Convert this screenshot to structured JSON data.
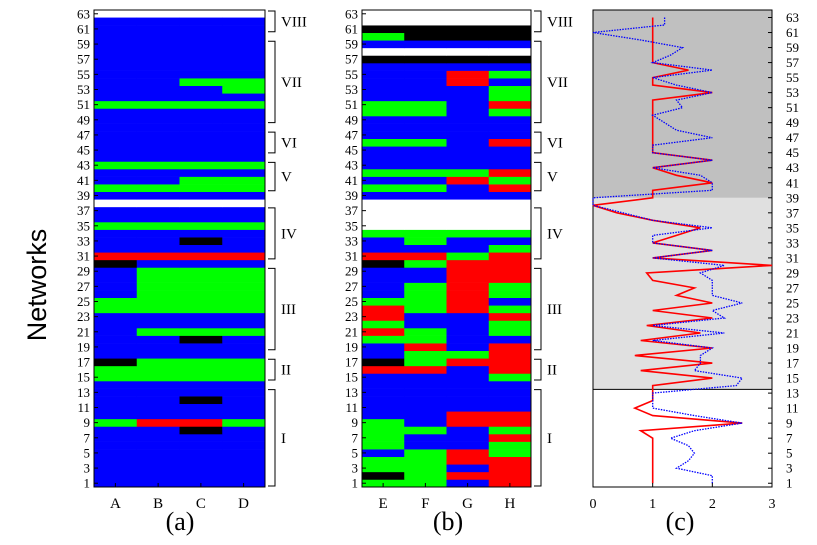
{
  "chart_data": [
    {
      "type": "heatmap",
      "panel_label": "(a)",
      "ylabel": "Networks",
      "columns": [
        "A",
        "B",
        "C",
        "D"
      ],
      "legend": {
        "blue": "#0000ff",
        "green": "#00ff00",
        "red": "#ff0000",
        "black": "#000000"
      },
      "rows_labeled": [
        1,
        3,
        5,
        7,
        9,
        11,
        13,
        15,
        17,
        19,
        21,
        23,
        25,
        27,
        29,
        31,
        33,
        35,
        37,
        39,
        41,
        43,
        45,
        47,
        49,
        51,
        53,
        55,
        57,
        59,
        61,
        63
      ],
      "grid": [
        "BBBB",
        "BBBB",
        "BBBB",
        "BBBB",
        "BBBB",
        "BBBB",
        "BBBB",
        "BBKB",
        "GRRG",
        "BBBB",
        "BBBB",
        "BBKB",
        "BBBB",
        "BBBB",
        "GGGG",
        "GGGG",
        "KGGG",
        "BBBB",
        "BBBB",
        "BBKB",
        "BGGG",
        "BBBB",
        "BBBB",
        "GGGG",
        "GGGG",
        "BGGG",
        "BGGG",
        "BGGG",
        "BGGG",
        "KBBB",
        "RRRR",
        "BBBB",
        "BBKB",
        "BBBB",
        "GGGG",
        "BBBB",
        "BBBB",
        "WWWW",
        "BBBB",
        "GGGG",
        "BBGG",
        "BBBB",
        "GGGG",
        "BBBB",
        "BBBB",
        "BBBB",
        "BBBB",
        "BBBB",
        "BBBB",
        "BBBB",
        "GGGG",
        "BBBB",
        "BBBG",
        "BBGG",
        "BBBB",
        "BBBB",
        "BBBB",
        "BBBB",
        "BBBB",
        "BBBB",
        "BBBB",
        "BBBB"
      ],
      "groups": [
        {
          "label": "I",
          "rows": [
            1,
            13
          ]
        },
        {
          "label": "II",
          "rows": [
            15,
            17
          ]
        },
        {
          "label": "III",
          "rows": [
            19,
            29
          ]
        },
        {
          "label": "IV",
          "rows": [
            31,
            37
          ]
        },
        {
          "label": "V",
          "rows": [
            40,
            43
          ]
        },
        {
          "label": "VI",
          "rows": [
            45,
            47
          ]
        },
        {
          "label": "VII",
          "rows": [
            49,
            59
          ]
        },
        {
          "label": "VIII",
          "rows": [
            61,
            63
          ]
        }
      ]
    },
    {
      "type": "heatmap",
      "panel_label": "(b)",
      "columns": [
        "E",
        "F",
        "G",
        "H"
      ],
      "rows_labeled": [
        1,
        3,
        5,
        7,
        9,
        11,
        13,
        15,
        17,
        19,
        21,
        23,
        25,
        27,
        29,
        31,
        33,
        35,
        37,
        39,
        41,
        43,
        45,
        47,
        49,
        51,
        53,
        55,
        57,
        59,
        61,
        63
      ],
      "grid": [
        "GGBR",
        "KGRR",
        "GGBR",
        "GGRR",
        "BGRG",
        "GBBG",
        "GBBR",
        "GGBG",
        "GBRR",
        "BBRR",
        "BBBB",
        "BBBB",
        "BBBB",
        "BBBB",
        "BBBG",
        "RRBR",
        "KGRR",
        "BGGR",
        "BRBR",
        "GGBB",
        "RGBG",
        "GBBG",
        "RBBR",
        "RGRG",
        "GGRB",
        "BGRG",
        "BGRG",
        "BBRR",
        "BBRR",
        "KGRR",
        "RRGR",
        "BBBG",
        "BGBB",
        "GGGG",
        "WWWW",
        "WWWW",
        "WWWW",
        "WWWW",
        "BBBB",
        "GGBR",
        "BBRG",
        "GGGR",
        "BBBB",
        "BBBB",
        "BBBB",
        "GGBR",
        "BBBB",
        "BBBB",
        "BBBB",
        "GGBG",
        "GGBR",
        "BBBG",
        "BBBG",
        "BBRB",
        "BBRG",
        "BBBB",
        "KKKK",
        "WWWW",
        "BBBB",
        "GKKK",
        "KKKK",
        "WWWW"
      ],
      "groups": [
        {
          "label": "I",
          "rows": [
            1,
            13
          ]
        },
        {
          "label": "II",
          "rows": [
            15,
            17
          ]
        },
        {
          "label": "III",
          "rows": [
            19,
            29
          ]
        },
        {
          "label": "IV",
          "rows": [
            31,
            37
          ]
        },
        {
          "label": "V",
          "rows": [
            40,
            43
          ]
        },
        {
          "label": "VI",
          "rows": [
            45,
            47
          ]
        },
        {
          "label": "VII",
          "rows": [
            49,
            59
          ]
        },
        {
          "label": "VIII",
          "rows": [
            61,
            63
          ]
        }
      ]
    },
    {
      "type": "line",
      "panel_label": "(c)",
      "xlim": [
        0,
        3
      ],
      "xticks": [
        0,
        1,
        2,
        3
      ],
      "ylim": [
        0.5,
        64
      ],
      "yticks": [
        1,
        3,
        5,
        7,
        9,
        11,
        13,
        15,
        17,
        19,
        21,
        23,
        25,
        27,
        29,
        31,
        33,
        35,
        37,
        39,
        41,
        43,
        45,
        47,
        49,
        51,
        53,
        55,
        57,
        59,
        61,
        63
      ],
      "shaded_bands": [
        {
          "rows": [
            13.5,
            39
          ],
          "color": "#e0e0e0"
        },
        {
          "rows": [
            39,
            64
          ],
          "color": "#c0c0c0"
        }
      ],
      "series": [
        {
          "color": "#ff0000",
          "style": "solid",
          "points": [
            [
              1,
              1
            ],
            [
              1,
              2
            ],
            [
              1,
              3
            ],
            [
              1,
              4
            ],
            [
              1,
              5
            ],
            [
              1,
              6
            ],
            [
              1,
              7
            ],
            [
              0.8,
              8
            ],
            [
              2.5,
              9
            ],
            [
              1,
              10
            ],
            [
              0.7,
              11
            ],
            [
              1,
              12
            ],
            [
              1,
              13
            ],
            [
              1,
              14
            ],
            [
              2,
              15
            ],
            [
              0.8,
              16
            ],
            [
              2,
              17
            ],
            [
              0.7,
              18
            ],
            [
              2,
              19
            ],
            [
              0.8,
              20
            ],
            [
              1.8,
              21
            ],
            [
              0.9,
              22
            ],
            [
              2,
              23
            ],
            [
              1,
              24
            ],
            [
              2,
              25
            ],
            [
              1.4,
              26
            ],
            [
              1.7,
              27
            ],
            [
              1,
              28
            ],
            [
              0.9,
              29
            ],
            [
              3,
              30
            ],
            [
              1,
              31
            ],
            [
              2,
              32
            ],
            [
              1,
              33
            ],
            [
              1.4,
              34
            ],
            [
              1.8,
              35
            ],
            [
              1,
              36
            ],
            [
              0.4,
              37
            ],
            [
              0,
              38
            ],
            [
              1,
              39
            ],
            [
              1,
              40
            ],
            [
              2,
              41
            ],
            [
              1.4,
              42
            ],
            [
              1,
              43
            ],
            [
              2,
              44
            ],
            [
              1,
              45
            ],
            [
              1,
              46
            ],
            [
              1,
              47
            ],
            [
              1,
              48
            ],
            [
              1,
              49
            ],
            [
              1,
              50
            ],
            [
              1,
              51
            ],
            [
              1,
              52
            ],
            [
              2,
              53
            ],
            [
              1,
              54
            ],
            [
              1,
              55
            ],
            [
              1.6,
              56
            ],
            [
              1,
              57
            ],
            [
              1,
              58
            ],
            [
              1,
              59
            ],
            [
              1,
              60
            ],
            [
              1,
              61
            ],
            [
              1,
              62
            ],
            [
              1,
              63
            ]
          ]
        },
        {
          "color": "#0000ff",
          "style": "dotted",
          "points": [
            [
              2,
              1
            ],
            [
              2,
              2
            ],
            [
              1.4,
              3
            ],
            [
              1.6,
              4
            ],
            [
              1.7,
              5
            ],
            [
              1.6,
              6
            ],
            [
              1.3,
              7
            ],
            [
              1.7,
              8
            ],
            [
              2.5,
              9
            ],
            [
              1.7,
              10
            ],
            [
              1,
              11
            ],
            [
              1,
              12
            ],
            [
              1,
              13
            ],
            [
              2.4,
              14
            ],
            [
              2.5,
              15
            ],
            [
              1.7,
              16
            ],
            [
              1.8,
              17
            ],
            [
              1.8,
              18
            ],
            [
              2,
              19
            ],
            [
              1,
              20
            ],
            [
              2.2,
              21
            ],
            [
              1,
              22
            ],
            [
              2.2,
              23
            ],
            [
              2,
              24
            ],
            [
              2.5,
              25
            ],
            [
              2,
              26
            ],
            [
              2,
              27
            ],
            [
              2,
              28
            ],
            [
              1.8,
              29
            ],
            [
              2.2,
              30
            ],
            [
              1,
              31
            ],
            [
              2,
              32
            ],
            [
              1,
              33
            ],
            [
              1,
              34
            ],
            [
              2,
              35
            ],
            [
              1,
              36
            ],
            [
              0.5,
              37
            ],
            [
              0,
              38
            ],
            [
              0,
              39
            ],
            [
              2,
              40
            ],
            [
              2,
              41
            ],
            [
              1.8,
              42
            ],
            [
              1,
              43
            ],
            [
              2,
              44
            ],
            [
              1,
              45
            ],
            [
              1,
              46
            ],
            [
              2,
              47
            ],
            [
              1.4,
              48
            ],
            [
              1.2,
              49
            ],
            [
              1,
              50
            ],
            [
              1.5,
              51
            ],
            [
              1.4,
              52
            ],
            [
              2,
              53
            ],
            [
              1.4,
              54
            ],
            [
              1,
              55
            ],
            [
              2,
              56
            ],
            [
              1,
              57
            ],
            [
              1.3,
              58
            ],
            [
              1.5,
              59
            ],
            [
              0.8,
              60
            ],
            [
              0,
              61
            ],
            [
              1.2,
              62
            ],
            [
              1.2,
              63
            ]
          ]
        }
      ]
    }
  ]
}
